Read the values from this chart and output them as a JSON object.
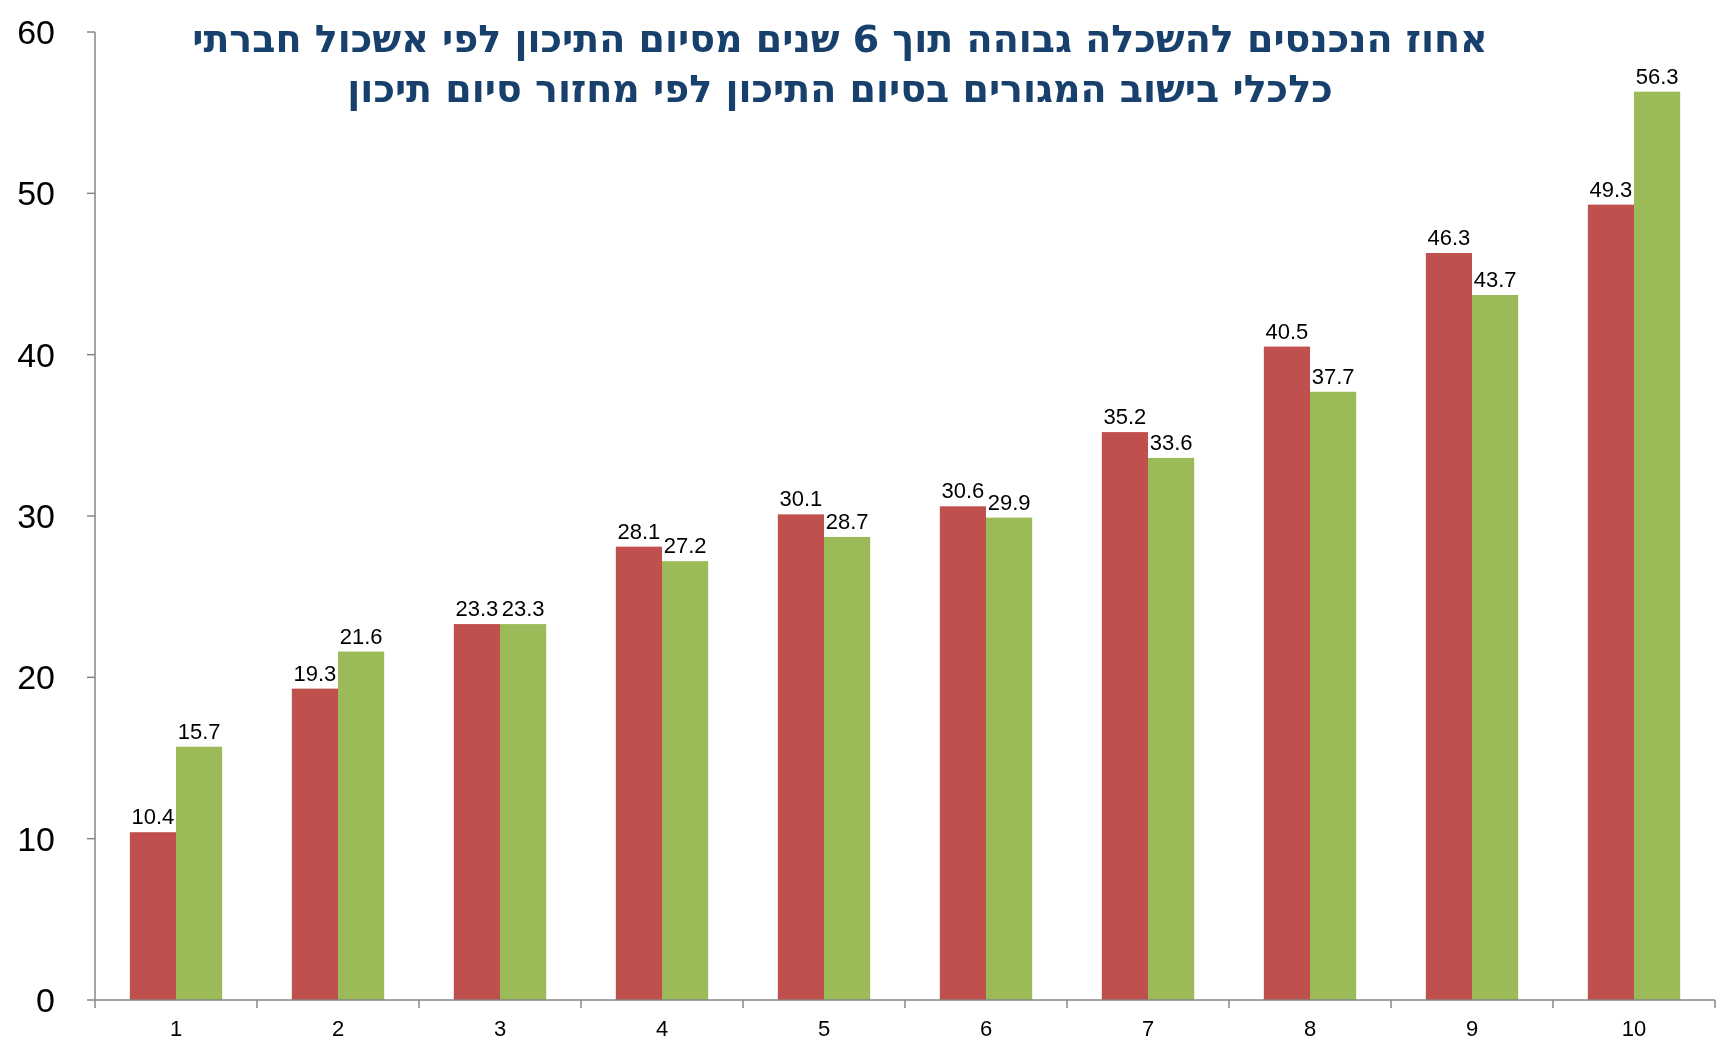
{
  "chart_data": {
    "type": "bar",
    "title": "אחוז הנכנסים להשכלה גבוהה תוך 6 שנים מסיום התיכון לפי אשכול חברתי כלכלי בישוב המגורים בסיום התיכון לפי מחזור סיום תיכון",
    "categories": [
      "1",
      "2",
      "3",
      "4",
      "5",
      "6",
      "7",
      "8",
      "9",
      "10"
    ],
    "series": [
      {
        "color": "#c0504d",
        "values": [
          10.4,
          19.3,
          23.3,
          28.1,
          30.1,
          30.6,
          35.2,
          40.5,
          46.3,
          49.3
        ]
      },
      {
        "color": "#9bbb59",
        "values": [
          15.7,
          21.6,
          23.3,
          27.2,
          28.7,
          29.9,
          33.6,
          37.7,
          43.7,
          56.3
        ]
      }
    ],
    "ylim": [
      0,
      60
    ],
    "yticks": [
      0,
      10,
      20,
      30,
      40,
      50,
      60
    ],
    "data_labels": true
  }
}
